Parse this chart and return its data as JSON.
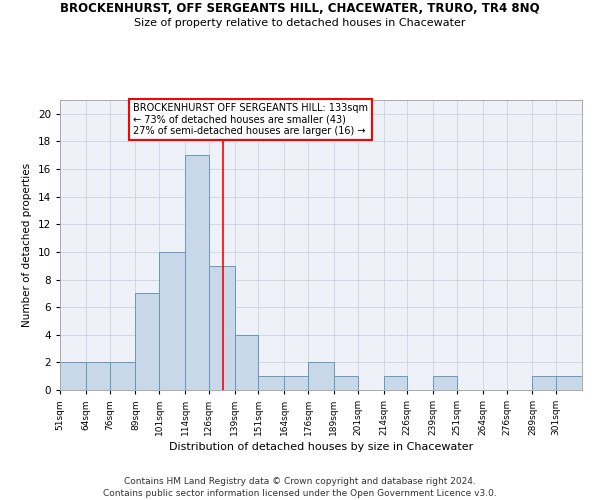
{
  "title": "BROCKENHURST, OFF SERGEANTS HILL, CHACEWATER, TRURO, TR4 8NQ",
  "subtitle": "Size of property relative to detached houses in Chacewater",
  "xlabel": "Distribution of detached houses by size in Chacewater",
  "ylabel": "Number of detached properties",
  "footer_line1": "Contains HM Land Registry data © Crown copyright and database right 2024.",
  "footer_line2": "Contains public sector information licensed under the Open Government Licence v3.0.",
  "bin_labels": [
    "51sqm",
    "64sqm",
    "76sqm",
    "89sqm",
    "101sqm",
    "114sqm",
    "126sqm",
    "139sqm",
    "151sqm",
    "164sqm",
    "176sqm",
    "189sqm",
    "201sqm",
    "214sqm",
    "226sqm",
    "239sqm",
    "251sqm",
    "264sqm",
    "276sqm",
    "289sqm",
    "301sqm"
  ],
  "bar_heights": [
    2,
    2,
    2,
    7,
    10,
    17,
    9,
    4,
    1,
    1,
    2,
    1,
    0,
    1,
    0,
    1,
    0,
    0,
    0,
    1,
    1
  ],
  "bar_color": "#c8d8e8",
  "bar_edge_color": "#6699bb",
  "grid_color": "#d0d8e8",
  "background_color": "#eef2f8",
  "annotation_box_text_line1": "BROCKENHURST OFF SERGEANTS HILL: 133sqm",
  "annotation_box_text_line2": "← 73% of detached houses are smaller (43)",
  "annotation_box_text_line3": "27% of semi-detached houses are larger (16) →",
  "annotation_box_color": "red",
  "vline_x": 133,
  "vline_color": "red",
  "ylim": [
    0,
    21
  ],
  "yticks": [
    0,
    2,
    4,
    6,
    8,
    10,
    12,
    14,
    16,
    18,
    20
  ],
  "bin_edges": [
    51,
    64,
    76,
    89,
    101,
    114,
    126,
    139,
    151,
    164,
    176,
    189,
    201,
    214,
    226,
    239,
    251,
    264,
    276,
    289,
    301,
    314
  ]
}
